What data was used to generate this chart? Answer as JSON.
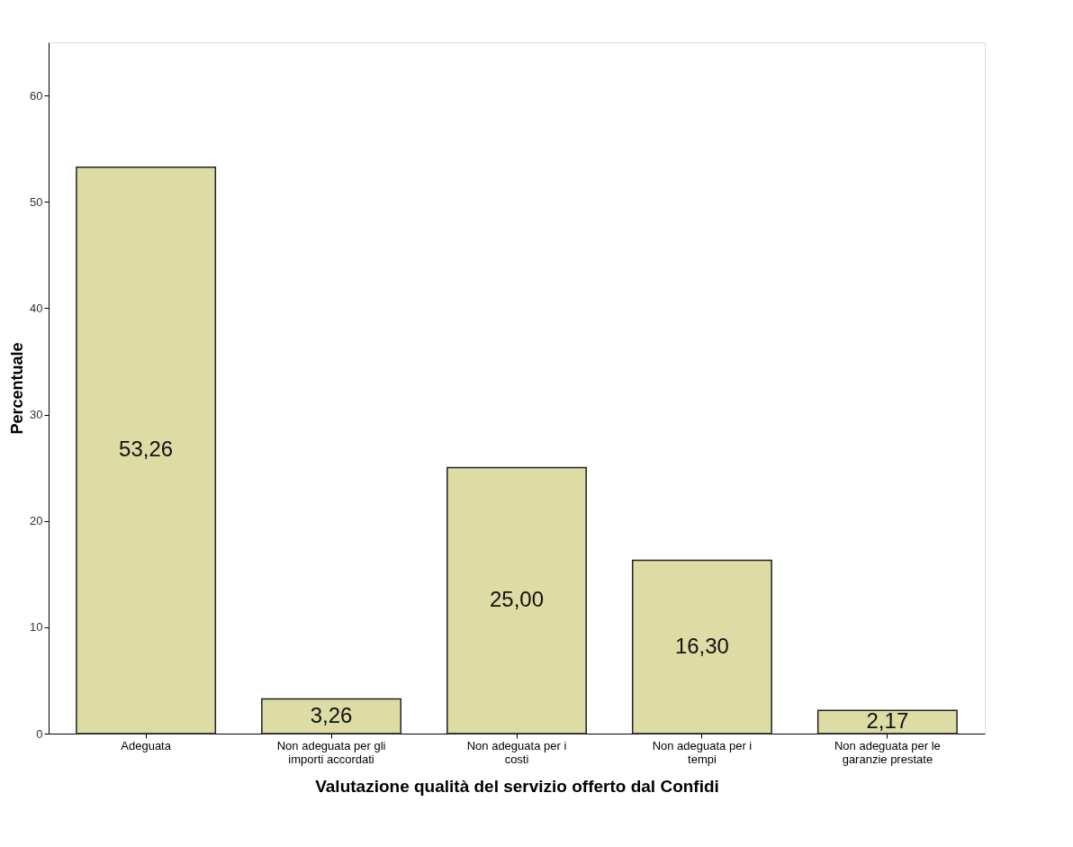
{
  "chart_data": {
    "type": "bar",
    "xlabel": "Valutazione qualità del servizio offerto dal Confidi",
    "ylabel": "Percentuale",
    "categories": [
      "Adeguata",
      "Non adeguata per gli importi accordati",
      "Non adeguata per i costi",
      "Non adeguata per i tempi",
      "Non adeguata per le garanzie prestate"
    ],
    "values": [
      53.26,
      3.26,
      25.0,
      16.3,
      2.17
    ],
    "value_labels": [
      "53,26",
      "3,26",
      "25,00",
      "16,30",
      "2,17"
    ],
    "color": "#dcdca4",
    "ylim": [
      0,
      65
    ],
    "yticks": [
      0,
      10,
      20,
      30,
      40,
      50,
      60
    ],
    "grid": false
  }
}
